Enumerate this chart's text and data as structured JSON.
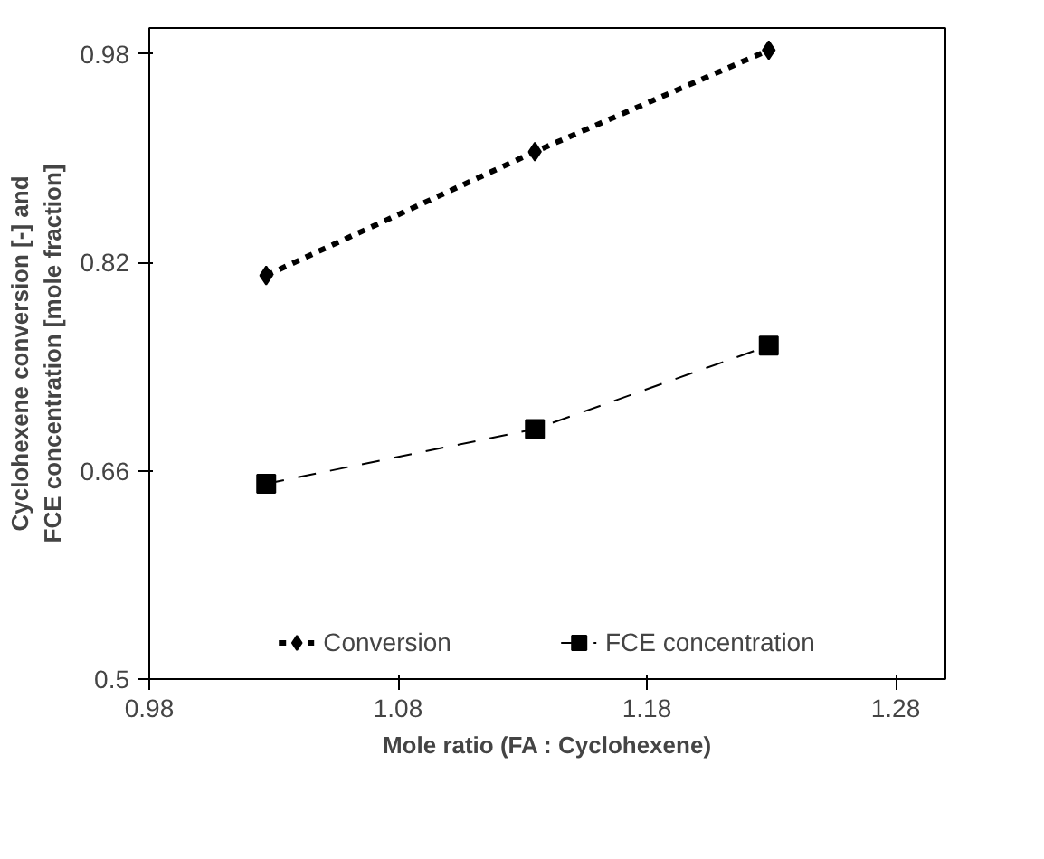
{
  "chart_data": {
    "type": "line",
    "xlabel": "Mole ratio (FA : Cyclohexene)",
    "ylabel": "Cyclohexene conversion [-] and FCE concentration [mole fraction]",
    "x": [
      1.027,
      1.135,
      1.229
    ],
    "series": [
      {
        "name": "Conversion",
        "color": "#000000",
        "values": [
          0.81,
          0.905,
          0.983
        ],
        "marker": "diamond",
        "line_style": "dotted"
      },
      {
        "name": "FCE concentration",
        "color": "#000000",
        "values": [
          0.65,
          0.692,
          0.756
        ],
        "marker": "square",
        "line_style": "dashed"
      }
    ],
    "xlim": [
      0.98,
      1.3
    ],
    "ylim": [
      0.5,
      1.0
    ],
    "xticks": [
      0.98,
      1.08,
      1.18,
      1.28
    ],
    "yticks": [
      0.5,
      0.66,
      0.82,
      0.98
    ],
    "grid": false,
    "legend": "bottom"
  }
}
